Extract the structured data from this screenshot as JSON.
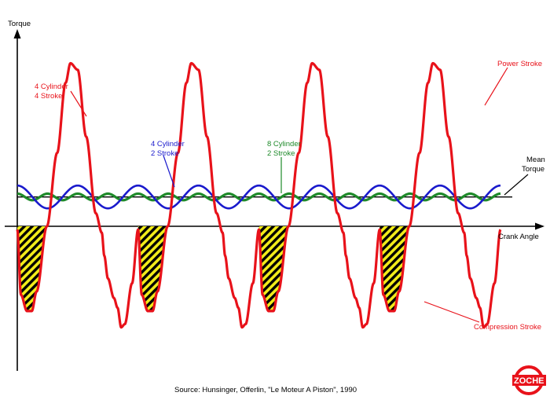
{
  "chart_data": {
    "type": "line",
    "ylabel": "Torque",
    "xlabel": "Crank Angle",
    "mean_label": [
      "Mean",
      "Torque"
    ],
    "source": "Source: Hunsinger, Offerlin, \"Le Moteur A Piston\", 1990",
    "series": [
      {
        "name": "4 Cylinder 4 Stroke",
        "color": "#e8121a",
        "cycles": 4,
        "peak": 1.0,
        "trough": -0.62,
        "mean": 0.18
      },
      {
        "name": "4 Cylinder 2 Stroke",
        "color": "#1a1acc",
        "cycles": 8,
        "amplitude": 0.07,
        "mean": 0.18
      },
      {
        "name": "8 Cylinder 2 Stroke",
        "color": "#1f8a2a",
        "cycles": 16,
        "amplitude": 0.02,
        "mean": 0.18
      }
    ],
    "annotations": {
      "power_stroke": "Power Stroke",
      "compression_stroke": "Compression Stroke",
      "red_label": [
        "4 Cylinder",
        "4 Stroke"
      ],
      "blue_label": [
        "4 Cylinder",
        "2 Stroke"
      ],
      "green_label": [
        "8 Cylinder",
        "2 Stroke"
      ]
    }
  },
  "logo": {
    "text": "ZOCHE",
    "color": "#e8121a"
  }
}
